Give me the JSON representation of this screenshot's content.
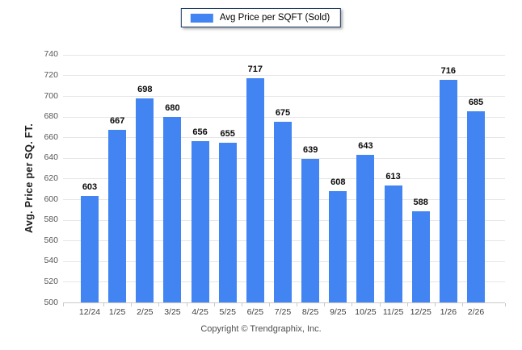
{
  "legend": {
    "label": "Avg Price per SQFT (Sold)",
    "swatch_color": "#4285f2",
    "border_color": "#17375e"
  },
  "footer": {
    "copyright": "Copyright © Trendgraphix, Inc."
  },
  "chart_data": {
    "type": "bar",
    "title": "",
    "categories": [
      "12/24",
      "1/25",
      "2/25",
      "3/25",
      "4/25",
      "5/25",
      "6/25",
      "7/25",
      "8/25",
      "9/25",
      "10/25",
      "11/25",
      "12/25",
      "1/26",
      "2/26"
    ],
    "values": [
      603,
      667,
      698,
      680,
      656,
      655,
      717,
      675,
      639,
      608,
      643,
      613,
      588,
      716,
      685
    ],
    "series_name": "Avg Price per SQFT (Sold)",
    "xlabel": "",
    "ylabel": "Avg. Price per SQ. FT.",
    "ylim": [
      500,
      740
    ],
    "ytick_step": 20,
    "yticks": [
      500,
      520,
      540,
      560,
      580,
      600,
      620,
      640,
      660,
      680,
      700,
      720,
      740
    ],
    "bar_color": "#4285f2",
    "grid": true,
    "gridline_color": "#e6e6e6",
    "axis_color": "#c9c9c9",
    "legend_position": "top-center",
    "value_labels": true
  }
}
